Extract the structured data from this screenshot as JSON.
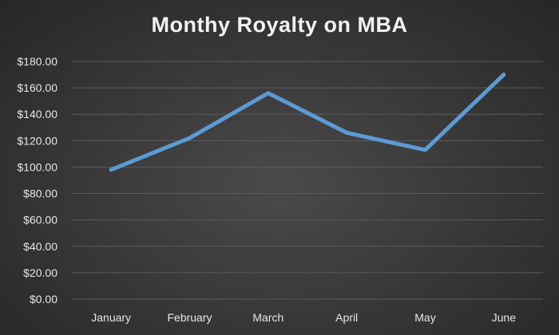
{
  "colors": {
    "background": "#333333",
    "line": "#5b9bd5",
    "gridline": "#5a5a5a",
    "text": "#e6e6e6"
  },
  "chart_data": {
    "type": "line",
    "title": "Monthy Royalty on MBA",
    "xlabel": "",
    "ylabel": "",
    "categories": [
      "January",
      "February",
      "March",
      "April",
      "May",
      "June"
    ],
    "series": [
      {
        "values": [
          98,
          122,
          156,
          126,
          113,
          170
        ]
      }
    ],
    "ylim": [
      0,
      180
    ],
    "yticks": [
      "$0.00",
      "$20.00",
      "$40.00",
      "$60.00",
      "$80.00",
      "$100.00",
      "$120.00",
      "$140.00",
      "$160.00",
      "$180.00"
    ],
    "grid": true,
    "legend": "none"
  }
}
